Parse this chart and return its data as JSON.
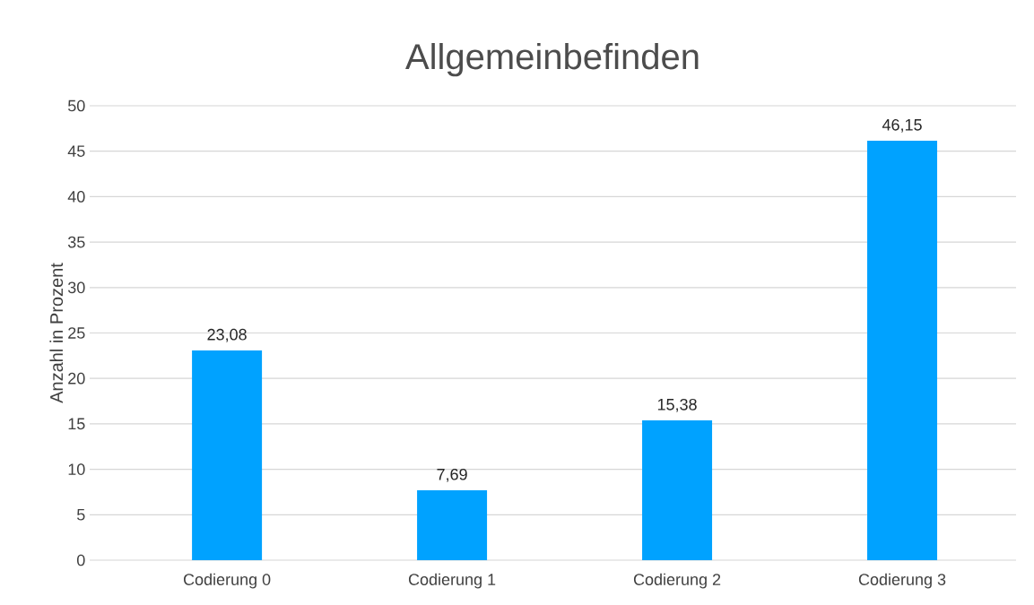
{
  "chart_data": {
    "type": "bar",
    "title": "Allgemeinbefinden",
    "ylabel": "Anzahl in Prozent",
    "categories": [
      "Codierung 0",
      "Codierung 1",
      "Codierung 2",
      "Codierung 3"
    ],
    "values": [
      23.08,
      7.69,
      15.38,
      46.15
    ],
    "value_labels": [
      "23,08",
      "7,69",
      "15,38",
      "46,15"
    ],
    "color": "#00a2ff",
    "ylim": [
      0,
      50
    ],
    "yticks": [
      0,
      5,
      10,
      15,
      20,
      25,
      30,
      35,
      40,
      45,
      50
    ],
    "grid": "y"
  }
}
